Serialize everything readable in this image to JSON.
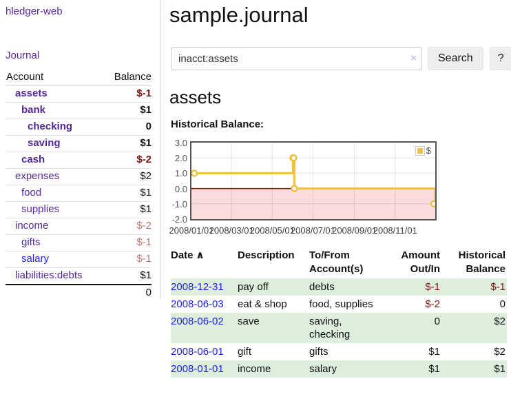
{
  "colors": {
    "purple_link": "#54289b",
    "blue_link": "#2222ee",
    "negative": "#7d1414",
    "negative_soft": "#bd7676",
    "row_green": "#ddeedd",
    "chart_gold": "#EDC240",
    "negative_region_pink": "#fadcdc",
    "zero_line_red": "#990000",
    "button_gray": "#eeeeee"
  },
  "sidebar": {
    "brand": "hledger-web",
    "nav": [
      {
        "label": "Journal"
      }
    ],
    "accounts": {
      "headers": [
        "Account",
        "Balance"
      ],
      "rows": [
        {
          "label": "assets",
          "depth": 1,
          "bold": true,
          "label_style": "purple",
          "value": "$-1",
          "value_style": "neg-strong"
        },
        {
          "label": "bank",
          "depth": 2,
          "bold": true,
          "label_style": "purple",
          "value": "$1",
          "value_style": "pos"
        },
        {
          "label": "checking",
          "depth": 3,
          "bold": true,
          "label_style": "purple",
          "value": "0",
          "value_style": "pos"
        },
        {
          "label": "saving",
          "depth": 3,
          "bold": true,
          "label_style": "purple",
          "value": "$1",
          "value_style": "pos"
        },
        {
          "label": "cash",
          "depth": 2,
          "bold": true,
          "label_style": "purple",
          "value": "$-2",
          "value_style": "neg-strong"
        },
        {
          "label": "expenses",
          "depth": 1,
          "bold": false,
          "label_style": "purple",
          "value": "$2",
          "value_style": "pos"
        },
        {
          "label": "food",
          "depth": 2,
          "bold": false,
          "label_style": "purple",
          "value": "$1",
          "value_style": "pos"
        },
        {
          "label": "supplies",
          "depth": 2,
          "bold": false,
          "label_style": "purple",
          "value": "$1",
          "value_style": "pos"
        },
        {
          "label": "income",
          "depth": 1,
          "bold": false,
          "label_style": "purple",
          "value": "$-2",
          "value_style": "neg-soft"
        },
        {
          "label": "gifts",
          "depth": 2,
          "bold": false,
          "label_style": "purple",
          "value": "$-1",
          "value_style": "neg-soft"
        },
        {
          "label": "salary",
          "depth": 2,
          "bold": false,
          "label_style": "bluelink",
          "value": "$-1",
          "value_style": "neg-soft"
        },
        {
          "label": "liabilities:debts",
          "depth": 1,
          "bold": false,
          "label_style": "purple",
          "value": "$1",
          "value_style": "pos"
        }
      ],
      "total": "0"
    }
  },
  "header": {
    "title": "sample.journal"
  },
  "search": {
    "value": "inacct:assets",
    "clear_icon": "×",
    "button_label": "Search",
    "help_label": "?"
  },
  "account_page": {
    "heading": "assets",
    "chart_label": "Historical Balance:"
  },
  "chart_data": {
    "type": "line",
    "step": true,
    "title": "Historical Balance",
    "series": [
      {
        "name": "$",
        "color": "#EDC240",
        "points": [
          [
            "2008-01-01",
            1
          ],
          [
            "2008-06-01",
            2
          ],
          [
            "2008-06-02",
            2
          ],
          [
            "2008-06-03",
            0
          ],
          [
            "2008-12-31",
            -1
          ]
        ]
      }
    ],
    "xrange": [
      "2008-01-01",
      "2008-12-31"
    ],
    "ylim": [
      -2,
      3
    ],
    "yticks": [
      {
        "v": 3,
        "label": "3.0"
      },
      {
        "v": 2,
        "label": "2.0"
      },
      {
        "v": 1,
        "label": "1.0"
      },
      {
        "v": 0,
        "label": "0.0"
      },
      {
        "v": -1,
        "label": "-1.0"
      },
      {
        "v": -2,
        "label": "-2.0"
      }
    ],
    "xticks": [
      {
        "date": "2008-01-01",
        "label": "2008/01/01"
      },
      {
        "date": "2008-03-01",
        "label": "2008/03/01"
      },
      {
        "date": "2008-05-01",
        "label": "2008/05/01"
      },
      {
        "date": "2008-07-01",
        "label": "2008/07/01"
      },
      {
        "date": "2008-09-01",
        "label": "2008/09/01"
      },
      {
        "date": "2008-11-01",
        "label": "2008/11/01"
      }
    ],
    "legend": {
      "position": "top-right",
      "label": "$"
    },
    "grid": true,
    "negative_region_shaded": true
  },
  "register": {
    "sort_icon": "∧",
    "headers": [
      "Date",
      "Description",
      "To/From Account(s)",
      "Amount Out/In",
      "Historical Balance"
    ],
    "rows": [
      {
        "date": "2008-12-31",
        "description": "pay off",
        "accounts": "debts",
        "amount": "$-1",
        "amount_neg": true,
        "balance": "$-1",
        "balance_neg": true
      },
      {
        "date": "2008-06-03",
        "description": "eat & shop",
        "accounts": "food, supplies",
        "amount": "$-2",
        "amount_neg": true,
        "balance": "0",
        "balance_neg": false
      },
      {
        "date": "2008-06-02",
        "description": "save",
        "accounts": "saving, checking",
        "amount": "0",
        "amount_neg": false,
        "balance": "$2",
        "balance_neg": false
      },
      {
        "date": "2008-06-01",
        "description": "gift",
        "accounts": "gifts",
        "amount": "$1",
        "amount_neg": false,
        "balance": "$2",
        "balance_neg": false
      },
      {
        "date": "2008-01-01",
        "description": "income",
        "accounts": "salary",
        "amount": "$1",
        "amount_neg": false,
        "balance": "$1",
        "balance_neg": false
      }
    ]
  }
}
